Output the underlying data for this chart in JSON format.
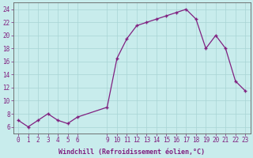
{
  "hours": [
    0,
    1,
    2,
    3,
    4,
    5,
    6,
    9,
    10,
    11,
    12,
    13,
    14,
    15,
    16,
    17,
    18,
    19,
    20,
    21,
    22,
    23
  ],
  "values": [
    7,
    6,
    7,
    8,
    7,
    6.5,
    7.5,
    9,
    16.5,
    19.5,
    21.5,
    22,
    22.5,
    23,
    23.5,
    24,
    22.5,
    18,
    20,
    18,
    13,
    11.5
  ],
  "line_color": "#802080",
  "marker_color": "#802080",
  "bg_color": "#c8ecec",
  "grid_color": "#a8d4d4",
  "xlabel": "Windchill (Refroidissement éolien,°C)",
  "yticks": [
    6,
    8,
    10,
    12,
    14,
    16,
    18,
    20,
    22,
    24
  ],
  "ylim": [
    5.0,
    25.0
  ],
  "xlim": [
    -0.5,
    23.5
  ],
  "axis_color": "#606060",
  "tick_color": "#802080",
  "label_color": "#802080",
  "tick_fontsize": 5.5,
  "label_fontsize": 6.0
}
